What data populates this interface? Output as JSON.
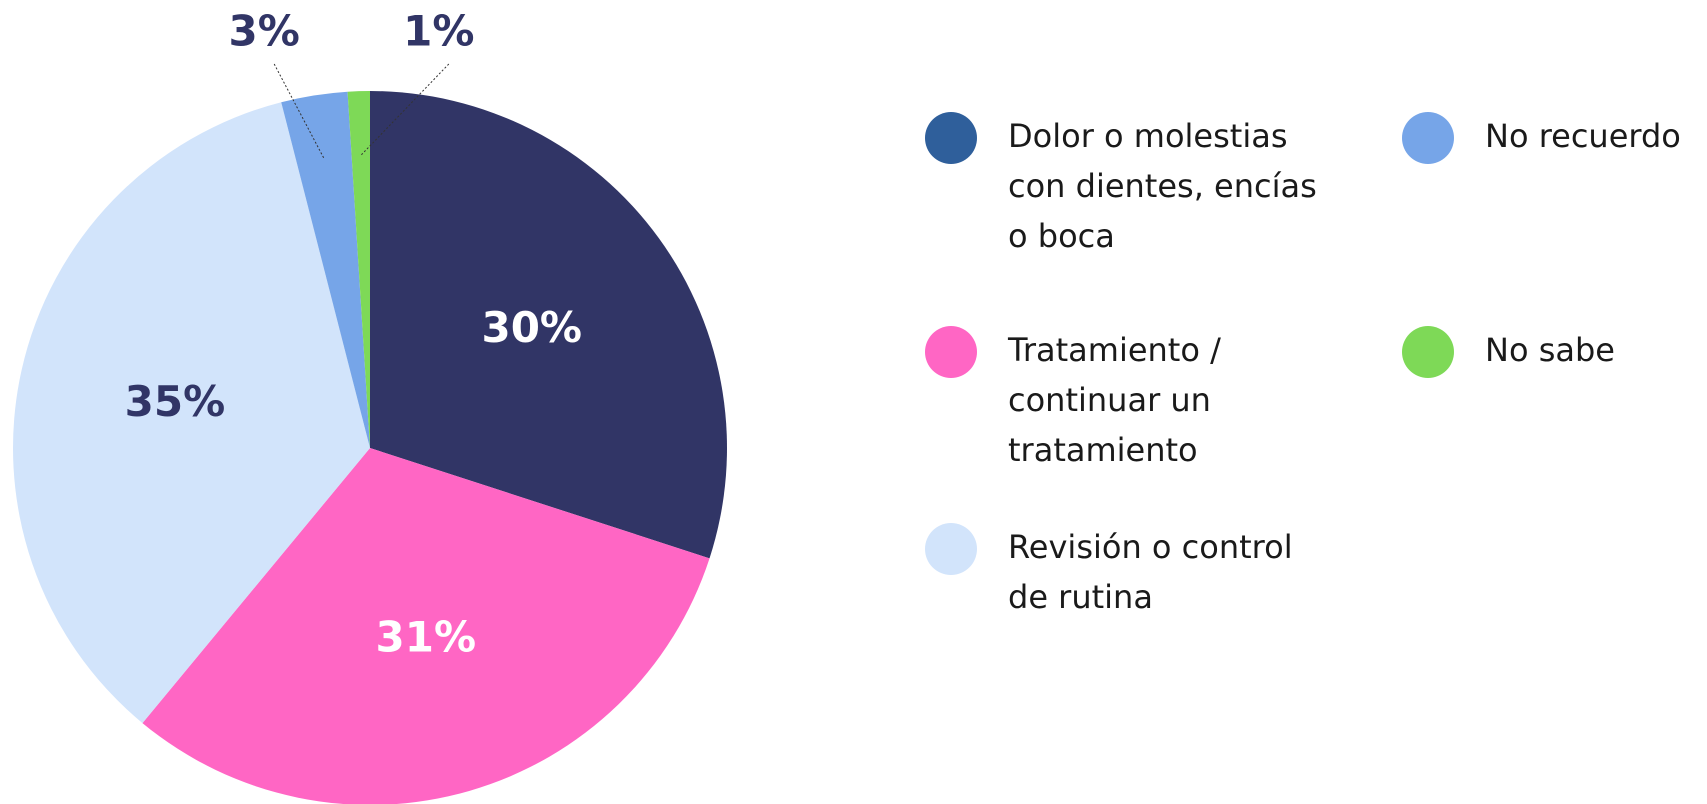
{
  "chart_data": {
    "type": "pie",
    "categories": [
      "Dolor o molestias con dientes, encías o boca",
      "Tratamiento / continuar un tratamiento",
      "Revisión o control de rutina",
      "No recuerdo",
      "No sabe"
    ],
    "values": [
      30,
      31,
      35,
      3,
      1
    ],
    "value_labels": [
      "30%",
      "31%",
      "35%",
      "3%",
      "1%"
    ],
    "colors": [
      "#313566",
      "#ff66c4",
      "#d2e4fb",
      "#76a5e8",
      "#7ed957"
    ],
    "legend_colors": [
      "#2f5f9b",
      "#ff66c4",
      "#d2e4fb",
      "#76a5e8",
      "#7ed957"
    ]
  }
}
